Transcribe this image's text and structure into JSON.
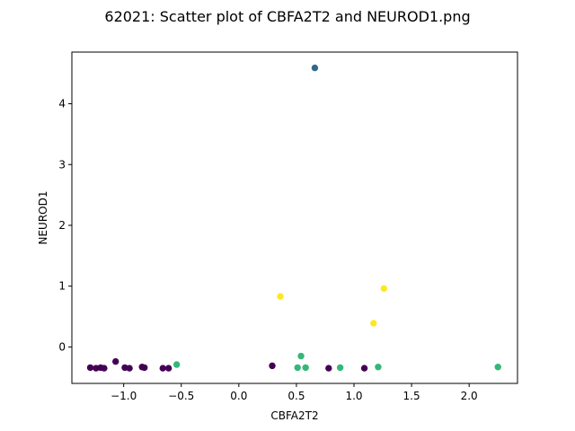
{
  "chart_data": {
    "type": "scatter",
    "title": "62021: Scatter plot of CBFA2T2 and NEUROD1.png",
    "xlabel": "CBFA2T2",
    "ylabel": "NEUROD1",
    "xlim": [
      -1.45,
      2.42
    ],
    "ylim": [
      -0.6,
      4.85
    ],
    "xticks": [
      -1.0,
      -0.5,
      0.0,
      0.5,
      1.0,
      1.5,
      2.0
    ],
    "xtick_labels": [
      "−1.0",
      "−0.5",
      "0.0",
      "0.5",
      "1.0",
      "1.5",
      "2.0"
    ],
    "yticks": [
      0,
      1,
      2,
      3,
      4
    ],
    "ytick_labels": [
      "0",
      "1",
      "2",
      "3",
      "4"
    ],
    "grid": false,
    "legend": "none",
    "groups": [
      {
        "color": "#440154",
        "points": [
          [
            -1.29,
            -0.34
          ],
          [
            -1.24,
            -0.35
          ],
          [
            -1.2,
            -0.34
          ],
          [
            -1.17,
            -0.35
          ],
          [
            -1.07,
            -0.24
          ],
          [
            -0.99,
            -0.34
          ],
          [
            -0.95,
            -0.35
          ],
          [
            -0.84,
            -0.33
          ],
          [
            -0.82,
            -0.34
          ],
          [
            -0.66,
            -0.35
          ],
          [
            -0.61,
            -0.35
          ],
          [
            0.29,
            -0.31
          ],
          [
            0.78,
            -0.35
          ],
          [
            1.09,
            -0.35
          ]
        ]
      },
      {
        "color": "#31688e",
        "points": [
          [
            0.66,
            4.59
          ]
        ]
      },
      {
        "color": "#35b779",
        "points": [
          [
            -0.54,
            -0.29
          ],
          [
            0.51,
            -0.34
          ],
          [
            0.54,
            -0.15
          ],
          [
            0.58,
            -0.34
          ],
          [
            0.88,
            -0.34
          ],
          [
            1.21,
            -0.33
          ],
          [
            2.25,
            -0.33
          ]
        ]
      },
      {
        "color": "#fde725",
        "points": [
          [
            0.36,
            0.83
          ],
          [
            1.17,
            0.39
          ],
          [
            1.26,
            0.96
          ]
        ]
      }
    ]
  }
}
